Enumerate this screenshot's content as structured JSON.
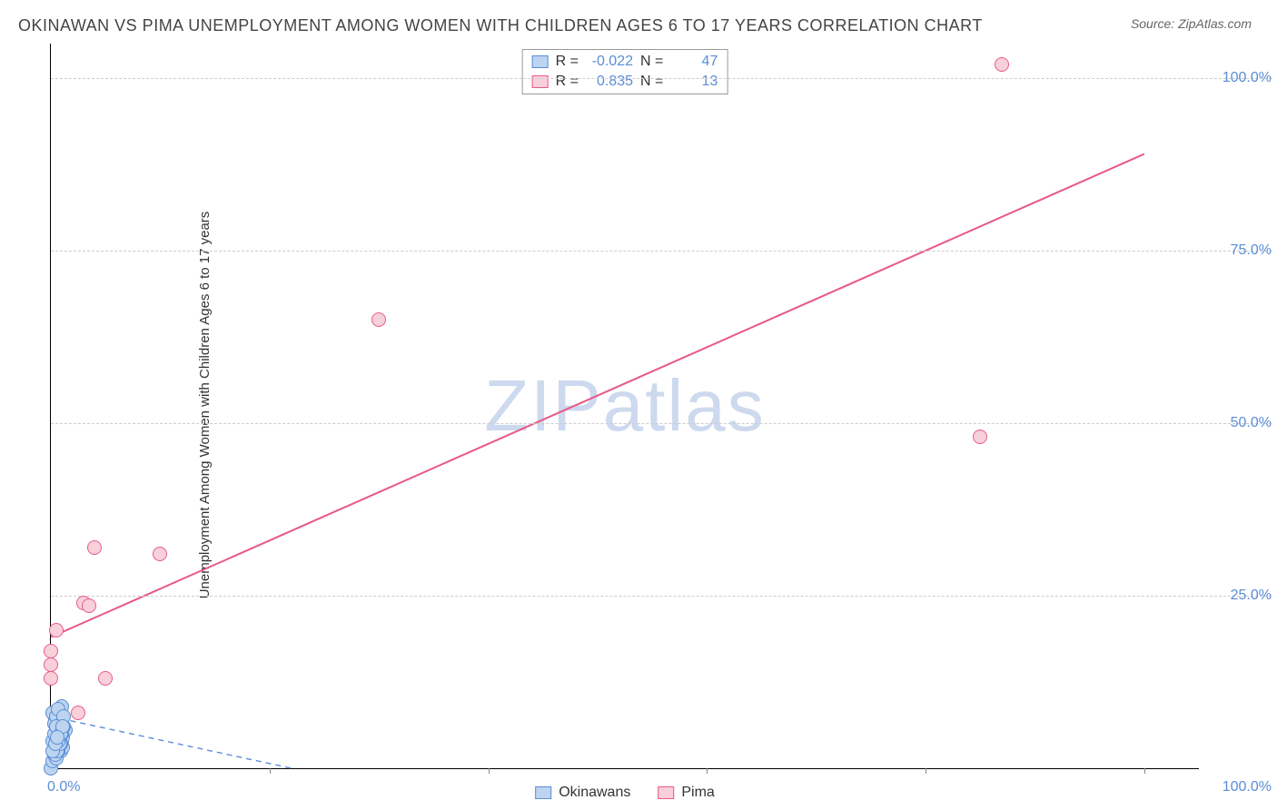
{
  "title": "OKINAWAN VS PIMA UNEMPLOYMENT AMONG WOMEN WITH CHILDREN AGES 6 TO 17 YEARS CORRELATION CHART",
  "source": "Source: ZipAtlas.com",
  "watermark": "ZIPatlas",
  "ylabel": "Unemployment Among Women with Children Ages 6 to 17 years",
  "chart": {
    "type": "scatter",
    "background_color": "#ffffff",
    "grid_color": "#cccccc",
    "axis_color": "#000000",
    "xlim": [
      0,
      105
    ],
    "ylim": [
      0,
      105
    ],
    "ytick_labels": [
      "25.0%",
      "50.0%",
      "75.0%",
      "100.0%"
    ],
    "ytick_values": [
      25,
      50,
      75,
      100
    ],
    "xtick_values": [
      0,
      20,
      40,
      60,
      80,
      100
    ],
    "xtick_corner_left": "0.0%",
    "xtick_corner_right": "100.0%",
    "tick_label_color": "#5b8dd6",
    "marker_radius": 8,
    "marker_stroke_width": 1.2,
    "series": [
      {
        "name": "Okinawans",
        "color_fill": "#bcd4f0",
        "color_stroke": "#5b8dd6",
        "R": "-0.022",
        "N": "47",
        "trend": {
          "x1": 0,
          "y1": 7.5,
          "x2": 22,
          "y2": 0,
          "dash": "6,5",
          "width": 1.4
        },
        "points": [
          [
            0.0,
            0.0
          ],
          [
            0.2,
            1.0
          ],
          [
            0.3,
            2.0
          ],
          [
            0.5,
            3.0
          ],
          [
            0.4,
            4.0
          ],
          [
            0.6,
            5.0
          ],
          [
            0.8,
            6.0
          ],
          [
            0.7,
            7.0
          ],
          [
            0.9,
            8.0
          ],
          [
            1.0,
            9.0
          ],
          [
            0.3,
            3.5
          ],
          [
            0.5,
            4.5
          ],
          [
            0.7,
            5.5
          ],
          [
            0.9,
            2.5
          ],
          [
            1.1,
            3.0
          ],
          [
            1.0,
            4.0
          ],
          [
            0.8,
            5.0
          ],
          [
            0.6,
            6.0
          ],
          [
            0.4,
            7.0
          ],
          [
            0.2,
            8.0
          ],
          [
            0.5,
            1.5
          ],
          [
            0.7,
            2.5
          ],
          [
            0.9,
            3.5
          ],
          [
            1.1,
            4.5
          ],
          [
            1.3,
            5.5
          ],
          [
            0.4,
            2.0
          ],
          [
            0.6,
            3.0
          ],
          [
            0.8,
            4.0
          ],
          [
            1.0,
            5.0
          ],
          [
            1.2,
            6.0
          ],
          [
            0.3,
            6.5
          ],
          [
            0.5,
            7.5
          ],
          [
            0.7,
            8.5
          ],
          [
            0.2,
            4.0
          ],
          [
            0.4,
            5.0
          ],
          [
            0.6,
            2.5
          ],
          [
            0.8,
            3.5
          ],
          [
            1.0,
            6.5
          ],
          [
            1.2,
            7.5
          ],
          [
            0.3,
            5.0
          ],
          [
            0.5,
            6.0
          ],
          [
            0.7,
            4.0
          ],
          [
            0.9,
            5.0
          ],
          [
            1.1,
            6.0
          ],
          [
            0.2,
            2.5
          ],
          [
            0.4,
            3.5
          ],
          [
            0.6,
            4.5
          ]
        ]
      },
      {
        "name": "Pima",
        "color_fill": "#f7d0da",
        "color_stroke": "#e85a8a",
        "R": "0.835",
        "N": "13",
        "trend": {
          "x1": 0,
          "y1": 19,
          "x2": 100,
          "y2": 89,
          "dash": "none",
          "width": 2
        },
        "points": [
          [
            0.0,
            13.0
          ],
          [
            0.0,
            15.0
          ],
          [
            0.0,
            17.0
          ],
          [
            0.5,
            20.0
          ],
          [
            2.5,
            8.0
          ],
          [
            3.0,
            24.0
          ],
          [
            3.5,
            23.5
          ],
          [
            5.0,
            13.0
          ],
          [
            4.0,
            32.0
          ],
          [
            10.0,
            31.0
          ],
          [
            30.0,
            65.0
          ],
          [
            85.0,
            48.0
          ],
          [
            87.0,
            102.0
          ]
        ]
      }
    ]
  },
  "legend_labels": {
    "series1": "Okinawans",
    "series2": "Pima"
  }
}
